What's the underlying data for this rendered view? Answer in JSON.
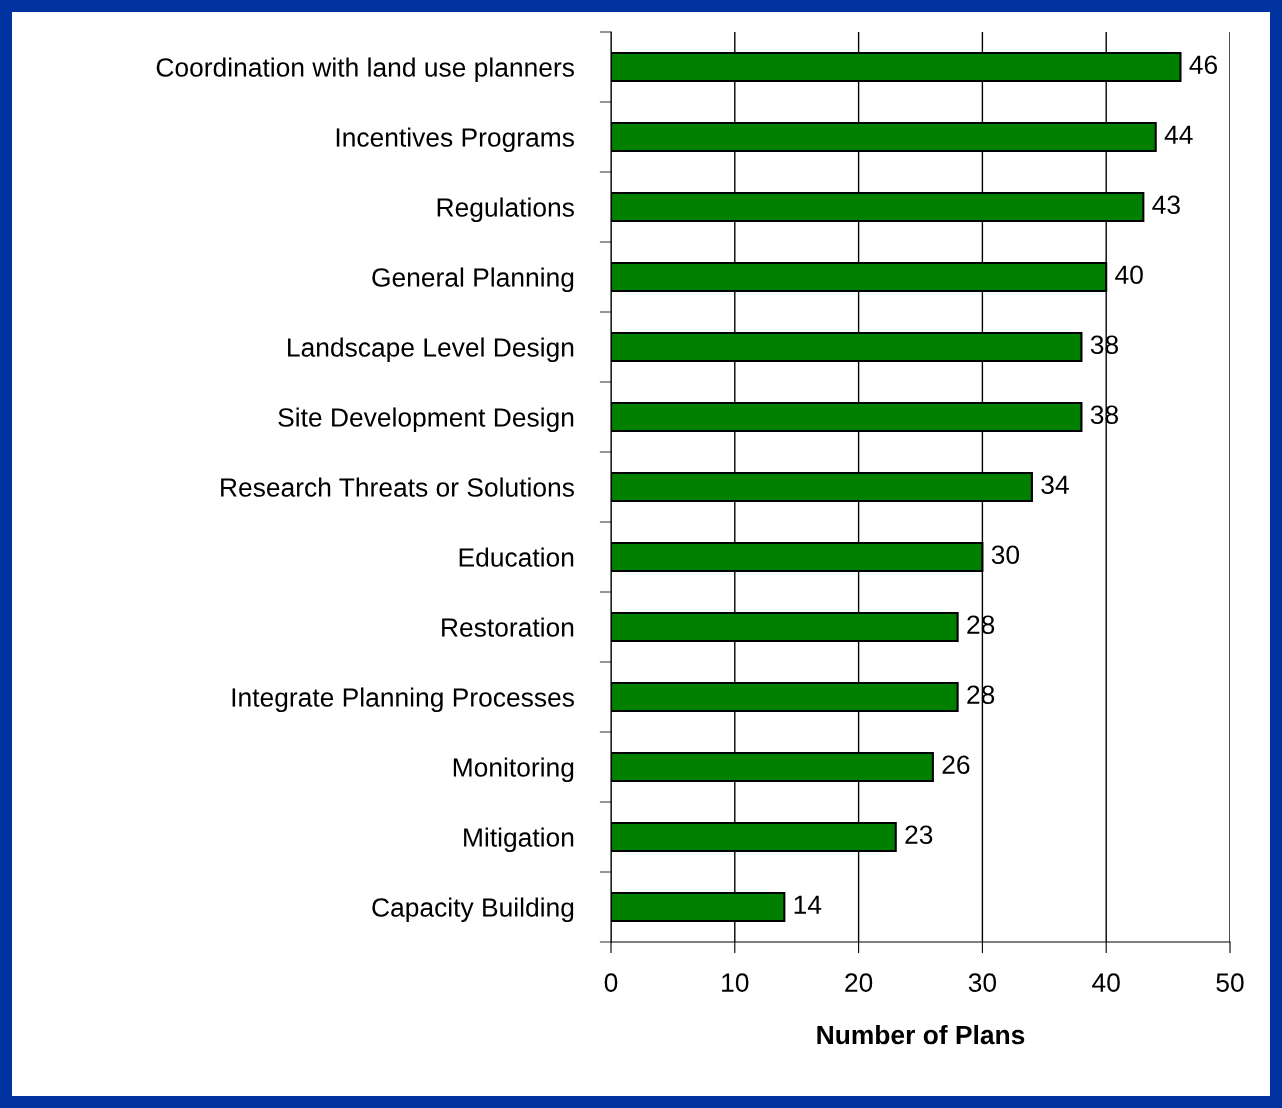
{
  "chart_data": {
    "type": "bar",
    "orientation": "horizontal",
    "xlabel": "Number of Plans",
    "categories": [
      "Coordination with land use planners",
      "Incentives Programs",
      "Regulations",
      "General Planning",
      "Landscape Level Design",
      "Site Development Design",
      "Research Threats or Solutions",
      "Education",
      "Restoration",
      "Integrate Planning Processes",
      "Monitoring",
      "Mitigation",
      "Capacity Building"
    ],
    "values": [
      46,
      44,
      43,
      40,
      38,
      38,
      34,
      30,
      28,
      28,
      26,
      23,
      14
    ],
    "color": "#008000",
    "xlim": [
      0,
      50
    ],
    "xticks": [
      0,
      10,
      20,
      30,
      40,
      50
    ],
    "grid": "x",
    "data_labels": true
  }
}
